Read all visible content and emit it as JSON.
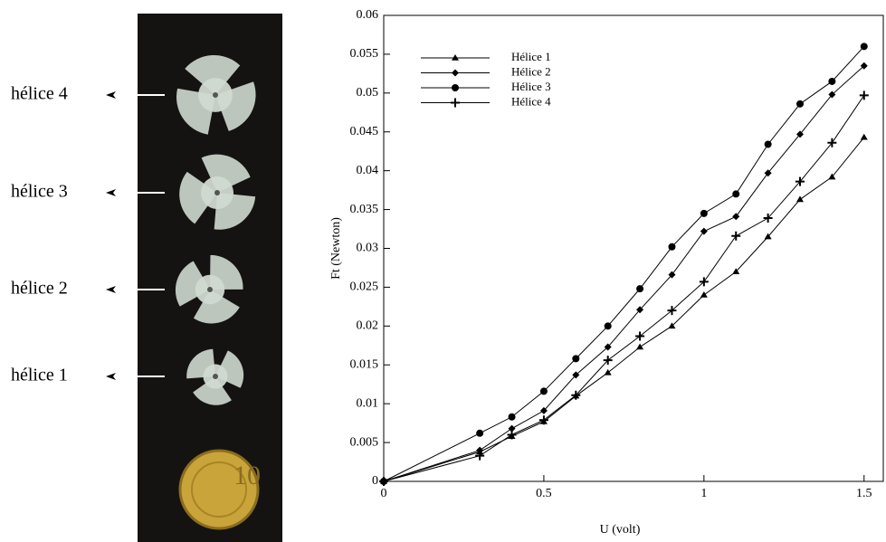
{
  "photo": {
    "labels": [
      "hélice 4",
      "hélice 3",
      "hélice 2",
      "hélice 1"
    ]
  },
  "chart_data": {
    "type": "line",
    "x_label": "U (volt)",
    "y_label": "Ft (Newton)",
    "x": [
      0,
      0.3,
      0.4,
      0.5,
      0.6,
      0.7,
      0.8,
      0.9,
      1.0,
      1.1,
      1.2,
      1.3,
      1.4,
      1.5
    ],
    "series": [
      {
        "name": "Hélice 1",
        "color": "#000000",
        "marker": "triangle",
        "values": [
          0,
          0.0038,
          0.0058,
          0.0077,
          0.011,
          0.014,
          0.0173,
          0.02,
          0.024,
          0.027,
          0.0315,
          0.0363,
          0.0392,
          0.0443
        ]
      },
      {
        "name": "Hélice 2",
        "color": "#000000",
        "marker": "diamond",
        "values": [
          0,
          0.004,
          0.0068,
          0.0091,
          0.0137,
          0.0173,
          0.0221,
          0.0266,
          0.0322,
          0.0341,
          0.0397,
          0.0447,
          0.0498,
          0.0535
        ]
      },
      {
        "name": "Hélice 3",
        "color": "#000000",
        "marker": "circle",
        "values": [
          0,
          0.0062,
          0.0083,
          0.0116,
          0.0158,
          0.02,
          0.0248,
          0.0302,
          0.0345,
          0.037,
          0.0434,
          0.0486,
          0.0515,
          0.056
        ]
      },
      {
        "name": "Hélice 4",
        "color": "#000000",
        "marker": "plus",
        "values": [
          0,
          0.0033,
          0.006,
          0.0079,
          0.0111,
          0.0156,
          0.0187,
          0.022,
          0.0257,
          0.0316,
          0.0339,
          0.0386,
          0.0436,
          0.0497
        ]
      }
    ],
    "xlim": [
      0,
      1.56
    ],
    "ylim": [
      0,
      0.06
    ],
    "xticks": [
      0,
      0.5,
      1,
      1.5
    ],
    "yticks": [
      0,
      0.005,
      0.01,
      0.015,
      0.02,
      0.025,
      0.03,
      0.035,
      0.04,
      0.045,
      0.05,
      0.055,
      0.06
    ],
    "legend": "upper-left"
  }
}
